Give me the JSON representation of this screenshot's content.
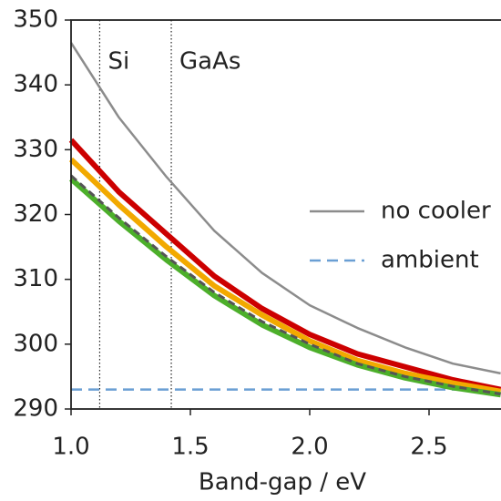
{
  "chart_data": {
    "type": "line",
    "x_label": "Band-gap / eV",
    "x": [
      1.0,
      1.2,
      1.4,
      1.6,
      1.8,
      2.0,
      2.2,
      2.4,
      2.6,
      2.8
    ],
    "series": [
      {
        "name": "no cooler",
        "color": "#8c8c8c",
        "width": 2.5,
        "dash": "solid",
        "values": [
          346.5,
          335,
          325.8,
          317.5,
          311,
          306,
          302.5,
          299.5,
          297,
          295.5
        ]
      },
      {
        "name": "ambient",
        "color": "#6a9fd4",
        "width": 2.5,
        "dash": "dashed",
        "values": [
          293,
          293,
          293,
          293,
          293,
          293,
          293,
          293,
          293,
          293
        ]
      },
      {
        "color": "#cc0000",
        "width": 6,
        "dash": "solid",
        "values": [
          331.5,
          323.5,
          317,
          310.5,
          305.5,
          301.5,
          298.5,
          296.5,
          294.5,
          293
        ]
      },
      {
        "color": "#f2a900",
        "width": 6,
        "dash": "solid",
        "values": [
          328.5,
          321.5,
          315,
          309,
          304.5,
          300.5,
          297.5,
          295.5,
          294,
          292.7
        ]
      },
      {
        "color": "#4caf2a",
        "width": 6,
        "dash": "solid",
        "values": [
          325.5,
          319,
          313,
          307.5,
          303,
          299.5,
          296.8,
          294.8,
          293.3,
          292.2
        ]
      },
      {
        "color": "#555555",
        "width": 3,
        "dash": "dashed",
        "values": [
          326,
          319.5,
          313.5,
          308,
          303.5,
          300,
          297,
          295,
          293.5,
          292.3
        ]
      }
    ],
    "vlines": [
      {
        "x": 1.12,
        "label": "Si"
      },
      {
        "x": 1.42,
        "label": "GaAs"
      }
    ],
    "xlim": [
      1.0,
      2.83
    ],
    "ylim": [
      290,
      350
    ],
    "xticks": [
      {
        "value": 1.0,
        "label": "1.0"
      },
      1.5,
      {
        "value": 2.0,
        "label": "2.0"
      },
      2.5
    ],
    "yticks": [
      290,
      300,
      310,
      320,
      330,
      340,
      350
    ],
    "legend": "right",
    "grid": false
  }
}
